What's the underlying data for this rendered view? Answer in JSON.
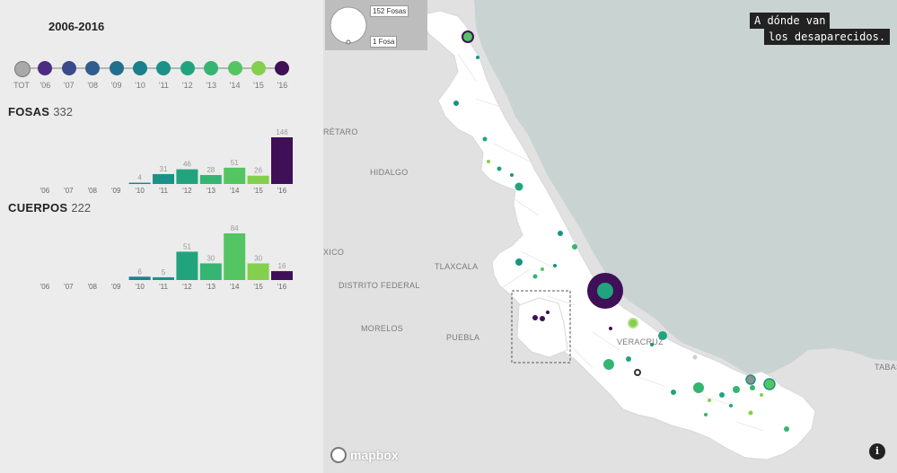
{
  "panel": {
    "range_title": "2006-2016",
    "years": [
      {
        "label": "TOT",
        "color": "#a9a9a9"
      },
      {
        "label": "'06",
        "color": "#4a2c82"
      },
      {
        "label": "'07",
        "color": "#3a4a8a"
      },
      {
        "label": "'08",
        "color": "#2f5d8d"
      },
      {
        "label": "'09",
        "color": "#226f8d"
      },
      {
        "label": "'10",
        "color": "#1b808b"
      },
      {
        "label": "'11",
        "color": "#1a9287"
      },
      {
        "label": "'12",
        "color": "#21a47e"
      },
      {
        "label": "'13",
        "color": "#34b572"
      },
      {
        "label": "'14",
        "color": "#55c463"
      },
      {
        "label": "'15",
        "color": "#84d04d"
      },
      {
        "label": "'16",
        "color": "#3f0f57"
      }
    ]
  },
  "chart_data": [
    {
      "type": "bar",
      "title": "FOSAS",
      "total": "332",
      "categories": [
        "'06",
        "'07",
        "'08",
        "'09",
        "'10",
        "'11",
        "'12",
        "'13",
        "'14",
        "'15",
        "'16"
      ],
      "values": [
        0,
        0,
        0,
        0,
        4,
        31,
        46,
        28,
        51,
        26,
        146
      ],
      "value_labels": [
        "",
        "",
        "",
        "",
        "4",
        "31",
        "46",
        "28",
        "51",
        "26",
        "146"
      ],
      "colors": [
        "#4a2c82",
        "#3a4a8a",
        "#2f5d8d",
        "#226f8d",
        "#1b808b",
        "#1a9287",
        "#21a47e",
        "#34b572",
        "#55c463",
        "#84d04d",
        "#3f0f57"
      ],
      "ylim": [
        0,
        146
      ]
    },
    {
      "type": "bar",
      "title": "CUERPOS",
      "total": "222",
      "categories": [
        "'06",
        "'07",
        "'08",
        "'09",
        "'10",
        "'11",
        "'12",
        "'13",
        "'14",
        "'15",
        "'16"
      ],
      "values": [
        0,
        0,
        0,
        0,
        6,
        5,
        51,
        30,
        84,
        30,
        16
      ],
      "value_labels": [
        "",
        "",
        "",
        "",
        "6",
        "5",
        "51",
        "30",
        "84",
        "30",
        "16"
      ],
      "colors": [
        "#4a2c82",
        "#3a4a8a",
        "#2f5d8d",
        "#226f8d",
        "#1b808b",
        "#1a9287",
        "#21a47e",
        "#34b572",
        "#55c463",
        "#84d04d",
        "#3f0f57"
      ],
      "ylim": [
        0,
        84
      ]
    }
  ],
  "map": {
    "legend": {
      "max_label": "152 Fosas",
      "min_label": "1 Fosa"
    },
    "title_line1": "A dónde van",
    "title_line2": "los desaparecidos.",
    "places": [
      "RÉTARO",
      "HIDALGO",
      "TLAXCALA",
      "XICO",
      "DISTRITO FEDERAL",
      "MORELOS",
      "PUEBLA",
      "VERACRUZ",
      "TABAS"
    ],
    "attribution": "mapbox",
    "info_icon": "info-icon",
    "colors": {
      "sea": "#c9d3d2",
      "land": "#e1e1e1",
      "state": "#ffffff"
    }
  }
}
